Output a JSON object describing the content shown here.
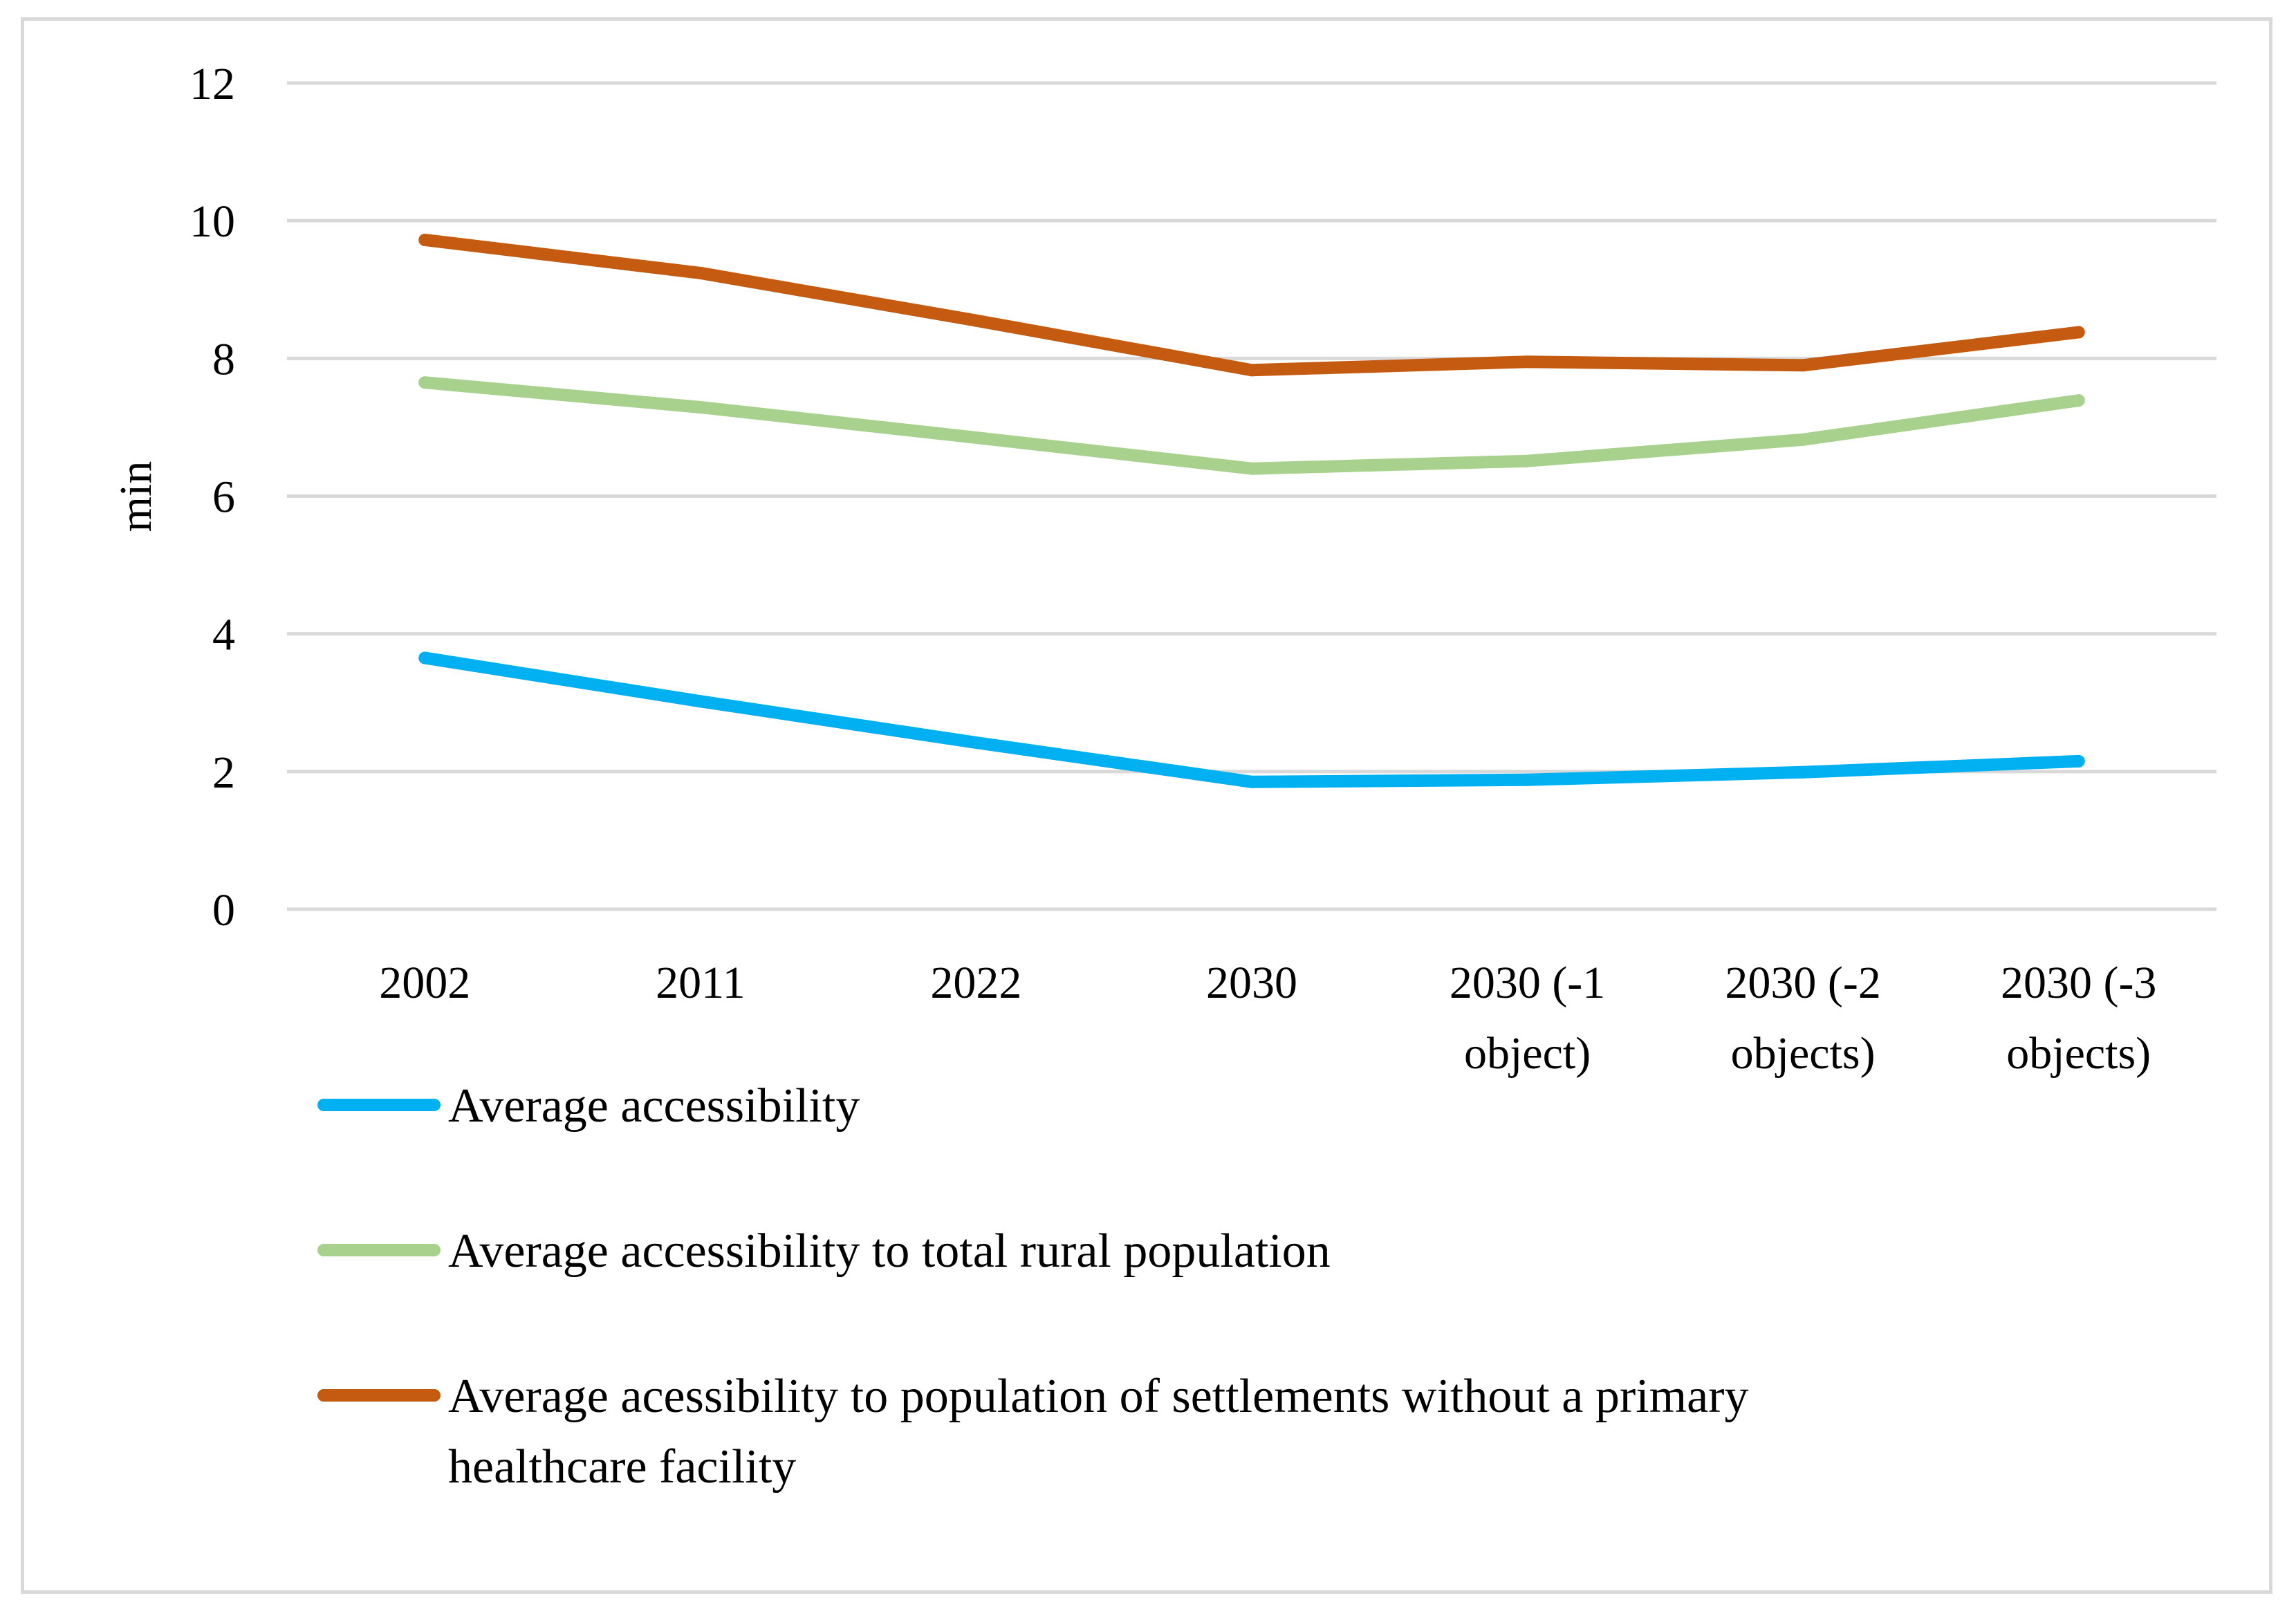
{
  "chart_data": {
    "type": "line",
    "title": "",
    "xlabel": "",
    "ylabel": "min",
    "ylim": [
      0,
      12
    ],
    "yticks": [
      0,
      2,
      4,
      6,
      8,
      10,
      12
    ],
    "grid": true,
    "legend_position": "bottom",
    "categories": [
      "2002",
      "2011",
      "2022",
      "2030",
      "2030 (-1 object)",
      "2030 (-2 objects)",
      "2030 (-3 objects)"
    ],
    "category_label_lines": [
      [
        "2002"
      ],
      [
        "2011"
      ],
      [
        "2022"
      ],
      [
        "2030"
      ],
      [
        "2030 (-1",
        "object)"
      ],
      [
        "2030 (-2",
        "objects)"
      ],
      [
        "2030 (-3",
        "objects)"
      ]
    ],
    "series": [
      {
        "name": "Average accessibility",
        "legend_lines": [
          "Average accessibility"
        ],
        "color": "#00b0f0",
        "values": [
          3.65,
          3.02,
          2.42,
          1.85,
          1.88,
          1.99,
          2.15
        ]
      },
      {
        "name": "Average accessibility to total rural population",
        "legend_lines": [
          "Average accessibility to total rural population"
        ],
        "color": "#a9d18e",
        "values": [
          7.65,
          7.29,
          6.85,
          6.4,
          6.51,
          6.82,
          7.39
        ]
      },
      {
        "name": "Average acessibility to population of settlements without a primary healthcare facility",
        "legend_lines": [
          "Average acessibility to population of settlements without a primary",
          "healthcare facility"
        ],
        "color": "#c55a11",
        "values": [
          9.72,
          9.24,
          8.55,
          7.83,
          7.95,
          7.9,
          8.38
        ]
      }
    ]
  }
}
